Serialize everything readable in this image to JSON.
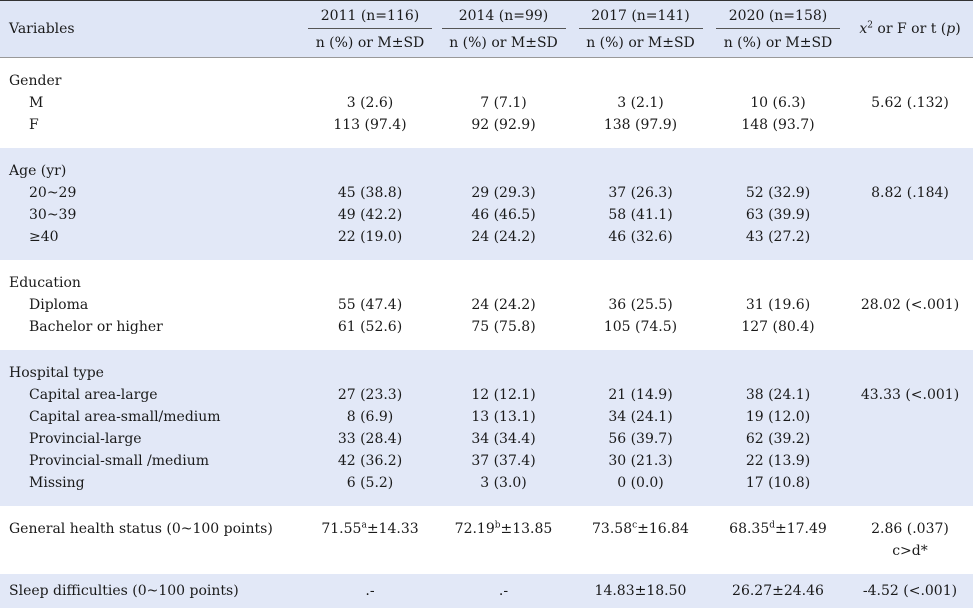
{
  "header": {
    "variables": "Variables",
    "years": [
      "2011 (n=116)",
      "2014 (n=99)",
      "2017 (n=141)",
      "2020 (n=158)"
    ],
    "sub": "n (%) or M±SD",
    "stat_x": "x",
    "stat_sq": "2",
    "stat_mid": " or F or t (",
    "stat_p": "p",
    "stat_end": ")"
  },
  "gender": {
    "label": "Gender",
    "rows": [
      {
        "name": "M",
        "v": [
          "3 (2.6)",
          "7 (7.1)",
          "3 (2.1)",
          "10 (6.3)"
        ],
        "stat": "5.62 (.132)"
      },
      {
        "name": "F",
        "v": [
          "113 (97.4)",
          "92 (92.9)",
          "138 (97.9)",
          "148 (93.7)"
        ],
        "stat": ""
      }
    ]
  },
  "age": {
    "label": "Age (yr)",
    "rows": [
      {
        "name": "20~29",
        "v": [
          "45 (38.8)",
          "29 (29.3)",
          "37 (26.3)",
          "52 (32.9)"
        ],
        "stat": "8.82 (.184)"
      },
      {
        "name": "30~39",
        "v": [
          "49 (42.2)",
          "46 (46.5)",
          "58 (41.1)",
          "63 (39.9)"
        ],
        "stat": ""
      },
      {
        "name": "≥40",
        "v": [
          "22 (19.0)",
          "24 (24.2)",
          "46 (32.6)",
          "43 (27.2)"
        ],
        "stat": ""
      }
    ]
  },
  "education": {
    "label": "Education",
    "rows": [
      {
        "name": "Diploma",
        "v": [
          "55 (47.4)",
          "24 (24.2)",
          "36 (25.5)",
          "31 (19.6)"
        ],
        "stat": "28.02 (<.001)"
      },
      {
        "name": "Bachelor or higher",
        "v": [
          "61 (52.6)",
          "75 (75.8)",
          "105 (74.5)",
          "127 (80.4)"
        ],
        "stat": ""
      }
    ]
  },
  "hospital": {
    "label": "Hospital type",
    "rows": [
      {
        "name": "Capital area-large",
        "v": [
          "27 (23.3)",
          "12 (12.1)",
          "21 (14.9)",
          "38 (24.1)"
        ],
        "stat": "43.33 (<.001)"
      },
      {
        "name": "Capital area-small/medium",
        "v": [
          "8 (6.9)",
          "13 (13.1)",
          "34 (24.1)",
          "19 (12.0)"
        ],
        "stat": ""
      },
      {
        "name": "Provincial-large",
        "v": [
          "33 (28.4)",
          "34 (34.4)",
          "56 (39.7)",
          "62 (39.2)"
        ],
        "stat": ""
      },
      {
        "name": "Provincial-small /medium",
        "v": [
          "42 (36.2)",
          "37 (37.4)",
          "30 (21.3)",
          "22 (13.9)"
        ],
        "stat": ""
      },
      {
        "name": "Missing",
        "v": [
          "6 (5.2)",
          "3 (3.0)",
          "0 (0.0)",
          "17 (10.8)"
        ],
        "stat": ""
      }
    ]
  },
  "health": {
    "label": "General health status (0~100 points)",
    "v": [
      {
        "m": "71.55",
        "sup": "a",
        "sd": "±14.33"
      },
      {
        "m": "72.19",
        "sup": "b",
        "sd": "±13.85"
      },
      {
        "m": "73.58",
        "sup": "c",
        "sd": "±16.84"
      },
      {
        "m": "68.35",
        "sup": "d",
        "sd": "±17.49"
      }
    ],
    "stat": "2.86 (.037)",
    "stat2": "c>d*"
  },
  "sleep": {
    "label": "Sleep difficulties (0~100 points)",
    "v": [
      ".-",
      ".-",
      "14.83±18.50",
      "26.27±24.46"
    ],
    "stat": "-4.52 (<.001)"
  }
}
